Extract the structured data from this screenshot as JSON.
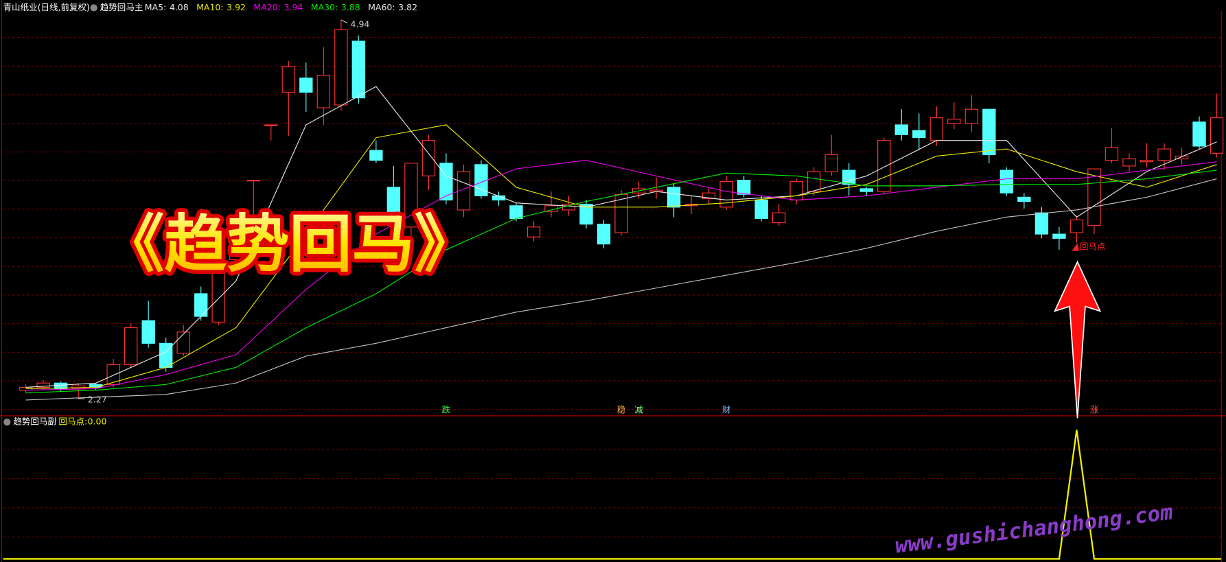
{
  "header": {
    "stock": "青山纸业(日线,前复权)",
    "indicator": "趋势回马主",
    "ma_labels": [
      {
        "label": "MA5:",
        "value": 4.08,
        "color": "#e8e8e8"
      },
      {
        "label": "MA10:",
        "value": 3.92,
        "color": "#e8e800"
      },
      {
        "label": "MA20:",
        "value": 3.94,
        "color": "#e800e8"
      },
      {
        "label": "MA30:",
        "value": 3.88,
        "color": "#00e800"
      },
      {
        "label": "MA60:",
        "value": 3.82,
        "color": "#e8e8e8"
      }
    ]
  },
  "chart_data": [
    {
      "type": "candlestick",
      "title": "《趋势回马》",
      "up_color": "#ff3232",
      "down_color": "#54ffff",
      "ylim": [
        2.16,
        5.08
      ],
      "grid": true,
      "open": [
        2.33,
        2.35,
        2.38,
        2.34,
        2.37,
        2.37,
        2.51,
        2.82,
        2.66,
        2.59,
        3.01,
        2.81,
        3.25,
        3.81,
        4.2,
        4.43,
        4.53,
        4.32,
        4.34,
        4.79,
        4.02,
        3.76,
        3.48,
        3.84,
        3.93,
        3.6,
        3.92,
        3.7,
        3.63,
        3.41,
        3.59,
        3.6,
        3.64,
        3.5,
        3.44,
        3.72,
        3.73,
        3.76,
        3.63,
        3.68,
        3.62,
        3.81,
        3.67,
        3.51,
        3.67,
        3.73,
        3.87,
        3.88,
        3.75,
        3.73,
        4.2,
        4.16,
        4.09,
        4.21,
        4.21,
        4.31,
        3.88,
        3.69,
        3.58,
        3.43,
        3.44,
        3.49,
        3.95,
        3.91,
        3.94,
        3.95,
        3.96,
        4.22,
        4.0
      ],
      "high": [
        2.37,
        2.4,
        2.39,
        2.38,
        2.38,
        2.55,
        2.8,
        2.96,
        2.7,
        2.79,
        3.06,
        3.31,
        3.6,
        3.81,
        4.2,
        4.65,
        4.64,
        4.75,
        4.94,
        4.83,
        4.09,
        3.91,
        3.93,
        4.13,
        4.0,
        3.92,
        3.95,
        3.73,
        3.65,
        3.52,
        3.73,
        3.7,
        3.67,
        3.53,
        3.74,
        3.8,
        3.83,
        3.79,
        3.7,
        3.76,
        3.84,
        3.84,
        3.7,
        3.64,
        3.82,
        3.9,
        4.13,
        3.93,
        3.76,
        4.11,
        4.31,
        4.28,
        4.33,
        4.36,
        4.41,
        4.31,
        3.9,
        3.72,
        3.62,
        3.48,
        3.56,
        3.89,
        4.18,
        4.0,
        4.07,
        4.07,
        4.04,
        4.26,
        4.42
      ],
      "low": [
        2.31,
        2.33,
        2.32,
        2.27,
        2.33,
        2.35,
        2.49,
        2.63,
        2.46,
        2.57,
        2.82,
        2.79,
        3.2,
        3.55,
        4.09,
        4.12,
        4.29,
        4.2,
        4.3,
        4.35,
        3.93,
        3.53,
        3.4,
        3.74,
        3.64,
        3.55,
        3.68,
        3.63,
        3.52,
        3.38,
        3.55,
        3.56,
        3.47,
        3.33,
        3.42,
        3.68,
        3.68,
        3.55,
        3.57,
        3.64,
        3.6,
        3.69,
        3.52,
        3.49,
        3.64,
        3.7,
        3.84,
        3.7,
        3.7,
        3.71,
        4.09,
        4.02,
        4.05,
        4.17,
        4.15,
        3.93,
        3.7,
        3.61,
        3.4,
        3.32,
        3.37,
        3.43,
        3.93,
        3.87,
        3.9,
        3.88,
        3.92,
        4.03,
        3.97
      ],
      "close": [
        2.35,
        2.38,
        2.34,
        2.36,
        2.35,
        2.51,
        2.77,
        2.66,
        2.49,
        2.74,
        2.85,
        3.26,
        3.55,
        3.81,
        4.2,
        4.61,
        4.43,
        4.55,
        4.87,
        4.39,
        3.95,
        3.58,
        3.93,
        4.09,
        3.67,
        3.87,
        3.7,
        3.67,
        3.54,
        3.48,
        3.63,
        3.64,
        3.5,
        3.36,
        3.71,
        3.75,
        3.74,
        3.62,
        3.64,
        3.72,
        3.8,
        3.71,
        3.54,
        3.58,
        3.8,
        3.87,
        3.99,
        3.78,
        3.73,
        4.09,
        4.13,
        4.11,
        4.25,
        4.24,
        4.31,
        3.99,
        3.72,
        3.66,
        3.43,
        3.4,
        3.53,
        3.89,
        4.04,
        3.96,
        3.95,
        4.03,
        3.98,
        4.05,
        4.25
      ],
      "series": [
        {
          "name": "MA5",
          "color": "#e8e8e8",
          "x": [
            0,
            4,
            8,
            12,
            16,
            20,
            24,
            28,
            32,
            36,
            40,
            44,
            48,
            52,
            56,
            60,
            64,
            68
          ],
          "values": [
            2.35,
            2.38,
            2.6,
            3.1,
            4.2,
            4.47,
            3.84,
            3.65,
            3.62,
            3.73,
            3.67,
            3.7,
            3.84,
            4.09,
            4.09,
            3.55,
            3.87,
            4.08
          ]
        },
        {
          "name": "MA10",
          "color": "#e8e800",
          "x": [
            0,
            4,
            8,
            12,
            16,
            20,
            24,
            28,
            32,
            36,
            40,
            44,
            48,
            52,
            56,
            60,
            64,
            68
          ],
          "values": [
            2.34,
            2.35,
            2.49,
            2.77,
            3.43,
            4.11,
            4.2,
            3.76,
            3.62,
            3.62,
            3.65,
            3.7,
            3.78,
            3.98,
            4.03,
            3.87,
            3.76,
            3.92
          ]
        },
        {
          "name": "MA20",
          "color": "#e800e8",
          "x": [
            0,
            4,
            8,
            12,
            16,
            20,
            24,
            28,
            32,
            36,
            40,
            44,
            48,
            52,
            56,
            60,
            64,
            68
          ],
          "values": [
            2.33,
            2.34,
            2.44,
            2.58,
            3.04,
            3.43,
            3.7,
            3.89,
            3.95,
            3.84,
            3.73,
            3.67,
            3.7,
            3.76,
            3.82,
            3.82,
            3.88,
            3.94
          ]
        },
        {
          "name": "MA30",
          "color": "#00e800",
          "x": [
            0,
            4,
            8,
            12,
            16,
            20,
            24,
            28,
            32,
            36,
            40,
            44,
            48,
            52,
            56,
            60,
            64,
            68
          ],
          "values": [
            2.31,
            2.33,
            2.37,
            2.49,
            2.77,
            3.01,
            3.32,
            3.54,
            3.66,
            3.76,
            3.86,
            3.84,
            3.77,
            3.77,
            3.78,
            3.78,
            3.82,
            3.88
          ]
        },
        {
          "name": "MA60",
          "color": "#c0c0c0",
          "x": [
            0,
            4,
            8,
            12,
            16,
            20,
            24,
            28,
            32,
            36,
            40,
            44,
            48,
            52,
            56,
            60,
            64,
            68
          ],
          "values": [
            2.26,
            2.28,
            2.3,
            2.38,
            2.57,
            2.66,
            2.77,
            2.88,
            2.96,
            3.05,
            3.14,
            3.23,
            3.33,
            3.45,
            3.55,
            3.6,
            3.69,
            3.82
          ]
        }
      ],
      "price_labels": [
        {
          "x": 18,
          "value": 4.94
        },
        {
          "x": 3,
          "value": 2.27
        }
      ],
      "signal": {
        "x": 60,
        "text": "回马点",
        "color": "#ff2020"
      },
      "markers": [
        {
          "x": 24,
          "text": "跌",
          "color": "#40ff40"
        },
        {
          "x": 34,
          "text": "稳",
          "color": "#ffb040"
        },
        {
          "x": 35,
          "text": "减",
          "color": "#80ff80"
        },
        {
          "x": 40,
          "text": "财",
          "color": "#80c0ff"
        },
        {
          "x": 61,
          "text": "涨",
          "color": "#ff5050"
        }
      ],
      "watermark": "www.gushichanghong.com"
    },
    {
      "type": "line",
      "title": "趋势回马副",
      "name": "回马点:",
      "color": "#f0f000",
      "last_value": 0,
      "value_labels": [
        "0.00"
      ],
      "ylim": [
        0,
        1
      ],
      "grid": true,
      "values": [
        0,
        0,
        0,
        0,
        0,
        0,
        0,
        0,
        0,
        0,
        0,
        0,
        0,
        0,
        0,
        0,
        0,
        0,
        0,
        0,
        0,
        0,
        0,
        0,
        0,
        0,
        0,
        0,
        0,
        0,
        0,
        0,
        0,
        0,
        0,
        0,
        0,
        0,
        0,
        0,
        0,
        0,
        0,
        0,
        0,
        0,
        0,
        0,
        0,
        0,
        0,
        0,
        0,
        0,
        0,
        0,
        0,
        0,
        0,
        0,
        1,
        0,
        0,
        0,
        0,
        0,
        0,
        0,
        0
      ]
    }
  ]
}
